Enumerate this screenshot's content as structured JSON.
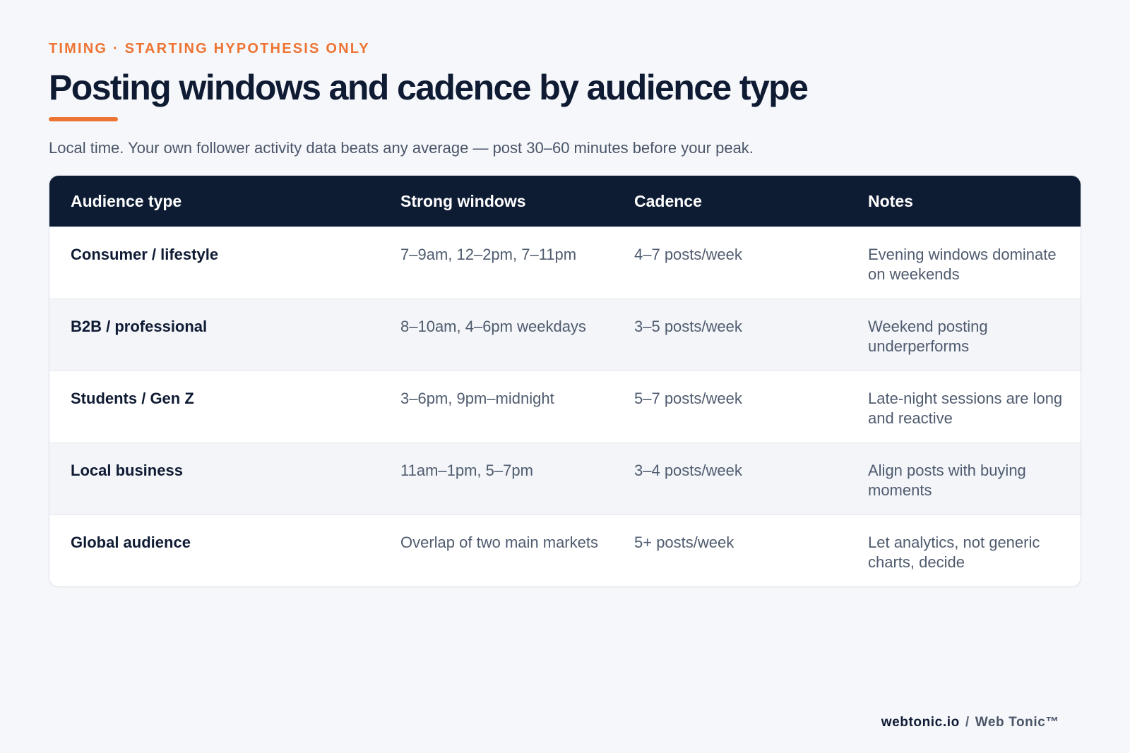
{
  "eyebrow": "TIMING · STARTING HYPOTHESIS ONLY",
  "title": "Posting windows and cadence by audience type",
  "subtitle": "Local time. Your own follower activity data beats any average — post 30–60 minutes before your peak.",
  "table": {
    "headers": [
      "Audience type",
      "Strong windows",
      "Cadence",
      "Notes"
    ],
    "rows": [
      [
        "Consumer / lifestyle",
        "7–9am, 12–2pm, 7–11pm",
        "4–7 posts/week",
        "Evening windows dominate on weekends"
      ],
      [
        "B2B / professional",
        "8–10am, 4–6pm weekdays",
        "3–5 posts/week",
        "Weekend posting underperforms"
      ],
      [
        "Students / Gen Z",
        "3–6pm, 9pm–midnight",
        "5–7 posts/week",
        "Late-night sessions are long and reactive"
      ],
      [
        "Local business",
        "11am–1pm, 5–7pm",
        "3–4 posts/week",
        "Align posts with buying moments"
      ],
      [
        "Global audience",
        "Overlap of two main markets",
        "5+ posts/week",
        "Let analytics, not generic charts, decide"
      ]
    ]
  },
  "footer": {
    "domain": "webtonic.io",
    "separator": "/",
    "brand": "Web Tonic™"
  },
  "colors": {
    "accent": "#ee7433",
    "header_bg": "#0d1b33",
    "page_bg": "#f5f7fa"
  }
}
